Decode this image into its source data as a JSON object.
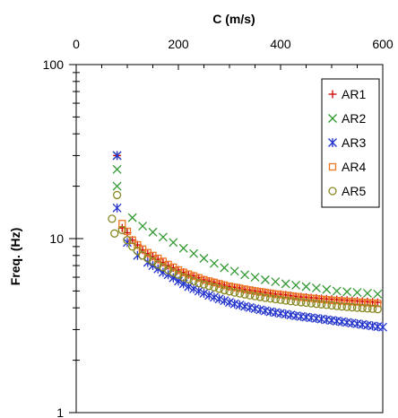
{
  "chart_data": {
    "type": "scatter",
    "xlabel": "C (m/s)",
    "ylabel": "Freq. (Hz)",
    "xlim": [
      0,
      600
    ],
    "ylim": [
      1,
      100
    ],
    "y_scale": "log",
    "x_axis_position": "top",
    "x_ticks": [
      0,
      200,
      400,
      600
    ],
    "x_tick_labels": [
      "0",
      "200",
      "400",
      "600"
    ],
    "y_ticks": [
      1,
      10,
      100
    ],
    "y_tick_labels": [
      "1",
      "10",
      "100"
    ],
    "grid": false,
    "legend_position": "top-right",
    "series": [
      {
        "name": "AR1",
        "marker": "plus",
        "color": "#cc0000",
        "x": [
          80,
          90,
          100,
          110,
          120,
          130,
          140,
          150,
          160,
          170,
          180,
          190,
          200,
          210,
          220,
          230,
          240,
          250,
          260,
          270,
          280,
          290,
          300,
          310,
          320,
          330,
          340,
          350,
          360,
          370,
          380,
          390,
          400,
          410,
          420,
          430,
          440,
          450,
          460,
          470,
          480,
          490,
          500,
          510,
          520,
          530,
          540,
          550,
          560,
          570,
          580,
          590
        ],
        "y": [
          30,
          11.5,
          10.8,
          9.8,
          9.2,
          8.6,
          8.2,
          7.9,
          7.6,
          7.3,
          7.0,
          6.8,
          6.6,
          6.4,
          6.2,
          6.1,
          5.95,
          5.8,
          5.7,
          5.6,
          5.5,
          5.4,
          5.3,
          5.25,
          5.2,
          5.1,
          5.05,
          5.0,
          4.95,
          4.9,
          4.85,
          4.8,
          4.78,
          4.75,
          4.7,
          4.65,
          4.62,
          4.6,
          4.57,
          4.55,
          4.52,
          4.5,
          4.48,
          4.46,
          4.44,
          4.42,
          4.4,
          4.38,
          4.36,
          4.34,
          4.32,
          4.3
        ]
      },
      {
        "name": "AR2",
        "marker": "x",
        "color": "#339933",
        "x": [
          80,
          80,
          80,
          110,
          130,
          150,
          170,
          190,
          210,
          230,
          250,
          270,
          290,
          310,
          330,
          350,
          370,
          390,
          410,
          430,
          450,
          470,
          490,
          510,
          530,
          550,
          570,
          590
        ],
        "y": [
          30,
          25,
          20,
          13.2,
          11.8,
          10.9,
          10.2,
          9.5,
          8.8,
          8.2,
          7.7,
          7.2,
          6.8,
          6.5,
          6.2,
          6.0,
          5.8,
          5.65,
          5.5,
          5.4,
          5.3,
          5.2,
          5.1,
          5.0,
          4.95,
          4.9,
          4.85,
          4.8
        ]
      },
      {
        "name": "AR3",
        "marker": "asterisk",
        "color": "#2233cc",
        "x": [
          80,
          80,
          100,
          120,
          140,
          150,
          160,
          170,
          180,
          190,
          200,
          210,
          220,
          230,
          240,
          250,
          260,
          270,
          280,
          290,
          300,
          310,
          320,
          330,
          340,
          350,
          360,
          370,
          380,
          390,
          400,
          410,
          420,
          430,
          440,
          450,
          460,
          470,
          480,
          490,
          500,
          510,
          520,
          530,
          540,
          550,
          560,
          570,
          580,
          590,
          600
        ],
        "y": [
          30,
          15,
          9.5,
          8.0,
          7.3,
          7.0,
          6.7,
          6.4,
          6.2,
          5.95,
          5.7,
          5.5,
          5.3,
          5.15,
          5.0,
          4.85,
          4.72,
          4.6,
          4.5,
          4.4,
          4.3,
          4.22,
          4.15,
          4.08,
          4.02,
          3.96,
          3.9,
          3.85,
          3.8,
          3.76,
          3.72,
          3.68,
          3.64,
          3.6,
          3.57,
          3.54,
          3.51,
          3.48,
          3.45,
          3.42,
          3.39,
          3.36,
          3.33,
          3.3,
          3.27,
          3.24,
          3.21,
          3.18,
          3.15,
          3.12,
          3.1
        ]
      },
      {
        "name": "AR4",
        "marker": "square",
        "color": "#ee7722",
        "x": [
          90,
          100,
          110,
          120,
          130,
          140,
          150,
          160,
          170,
          180,
          190,
          200,
          210,
          220,
          230,
          240,
          250,
          260,
          270,
          280,
          290,
          300,
          310,
          320,
          330,
          340,
          350,
          360,
          370,
          380,
          390,
          400,
          410,
          420,
          430,
          440,
          450,
          460,
          470,
          480,
          490,
          500,
          510,
          520,
          530,
          540,
          550,
          560,
          570,
          580,
          590
        ],
        "y": [
          12.2,
          11.0,
          9.8,
          9.2,
          8.7,
          8.3,
          8.0,
          7.7,
          7.4,
          7.1,
          6.85,
          6.6,
          6.4,
          6.25,
          6.1,
          5.95,
          5.8,
          5.7,
          5.6,
          5.5,
          5.4,
          5.32,
          5.25,
          5.18,
          5.12,
          5.06,
          5.0,
          4.95,
          4.9,
          4.85,
          4.8,
          4.76,
          4.72,
          4.68,
          4.64,
          4.6,
          4.57,
          4.54,
          4.51,
          4.48,
          4.45,
          4.42,
          4.4,
          4.38,
          4.36,
          4.34,
          4.32,
          4.3,
          4.28,
          4.26,
          4.24
        ]
      },
      {
        "name": "AR5",
        "marker": "circle",
        "color": "#888822",
        "x": [
          70,
          75,
          80,
          90,
          100,
          110,
          120,
          130,
          140,
          150,
          160,
          170,
          180,
          190,
          200,
          210,
          220,
          230,
          240,
          250,
          260,
          270,
          280,
          290,
          300,
          310,
          320,
          330,
          340,
          350,
          360,
          370,
          380,
          390,
          400,
          410,
          420,
          430,
          440,
          450,
          460,
          470,
          480,
          490,
          500,
          510,
          520,
          530,
          540,
          550,
          560,
          570,
          580,
          590
        ],
        "y": [
          13.0,
          10.7,
          17.8,
          11.2,
          9.8,
          9.0,
          8.5,
          8.0,
          7.7,
          7.4,
          7.1,
          6.85,
          6.6,
          6.4,
          6.2,
          6.0,
          5.85,
          5.7,
          5.55,
          5.45,
          5.35,
          5.25,
          5.15,
          5.05,
          4.98,
          4.9,
          4.84,
          4.78,
          4.72,
          4.67,
          4.62,
          4.57,
          4.53,
          4.49,
          4.45,
          4.41,
          4.37,
          4.34,
          4.31,
          4.28,
          4.25,
          4.22,
          4.19,
          4.16,
          4.13,
          4.1,
          4.07,
          4.05,
          4.03,
          4.01,
          3.99,
          3.97,
          3.95,
          3.93
        ]
      }
    ]
  }
}
